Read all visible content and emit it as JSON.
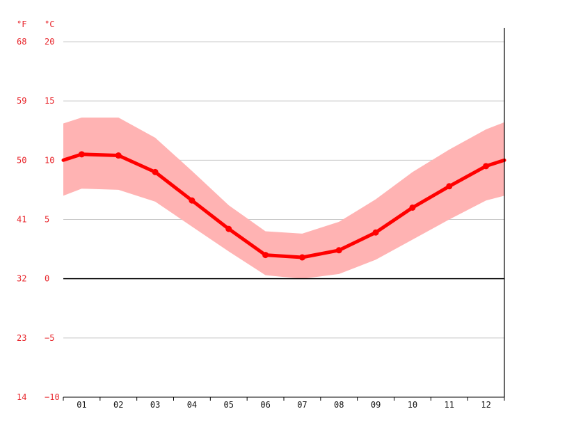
{
  "chart_data": {
    "type": "line",
    "title": "",
    "xlabel": "",
    "ylabel": "",
    "units": {
      "fahrenheit": "°F",
      "celsius": "°C"
    },
    "categories": [
      "01",
      "02",
      "03",
      "04",
      "05",
      "06",
      "07",
      "08",
      "09",
      "10",
      "11",
      "12"
    ],
    "ylim": [
      -10,
      20
    ],
    "yticks_c": [
      "20",
      "15",
      "10",
      "5",
      "0",
      "−5",
      "−10"
    ],
    "yticks_f": [
      "68",
      "59",
      "50",
      "41",
      "32",
      "23",
      "14"
    ],
    "grid": true,
    "series": [
      {
        "values": [
          10.5,
          10.4,
          9.0,
          6.6,
          4.2,
          2.0,
          1.8,
          2.4,
          3.9,
          6.0,
          7.8,
          9.5
        ]
      }
    ],
    "band": {
      "max": [
        13.6,
        13.6,
        11.9,
        9.1,
        6.2,
        4.0,
        3.8,
        4.8,
        6.7,
        9.0,
        10.9,
        12.6
      ],
      "min": [
        7.6,
        7.5,
        6.5,
        4.4,
        2.3,
        0.3,
        0.0,
        0.4,
        1.6,
        3.3,
        5.0,
        6.6
      ]
    },
    "edges": {
      "mean_start": 10.0,
      "mean_end": 10.0,
      "max_start": 13.1,
      "max_end": 13.2,
      "min_start": 7.0,
      "min_end": 7.0
    },
    "colors": {
      "line": "#ff0000",
      "band": "#ffb3b3",
      "axis_labels": "#e8262c",
      "grid": "#c8c8c8",
      "zero_line": "#000000"
    }
  }
}
